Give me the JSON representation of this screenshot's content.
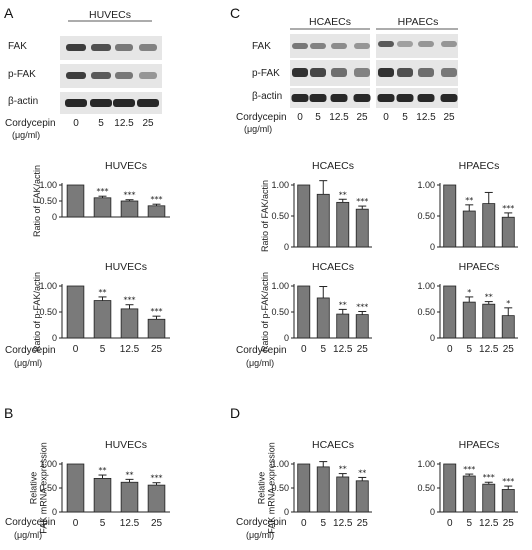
{
  "panels": {
    "A": "A",
    "B": "B",
    "C": "C",
    "D": "D"
  },
  "colors": {
    "bar": "#7a7a7a",
    "axis": "#222222",
    "band": "#1e1e1e",
    "blot_bg": "#e4e4e4"
  },
  "common": {
    "treatment_label": "Cordycepin",
    "treatment_unit": "(μg/ml)",
    "doses": [
      "0",
      "5",
      "12.5",
      "25"
    ]
  },
  "blots": {
    "A": {
      "cell_line": "HUVECs",
      "rows": [
        "FAK",
        "p-FAK",
        "β-actin"
      ]
    },
    "C": {
      "cell_lines": [
        "HCAECs",
        "HPAECs"
      ],
      "rows": [
        "FAK",
        "p-FAK",
        "β-actin"
      ]
    }
  },
  "chart_data": [
    {
      "id": "A1",
      "type": "bar",
      "title": "HUVECs",
      "ylabel": "Ratio of FAK/actin",
      "categories": [
        "0",
        "5",
        "12.5",
        "25"
      ],
      "values": [
        1.0,
        0.6,
        0.5,
        0.35
      ],
      "errors": [
        0,
        0.05,
        0.04,
        0.05
      ],
      "significance": [
        "",
        "***",
        "***",
        "***"
      ],
      "ylim": [
        0,
        1.0
      ],
      "yticks": [
        0,
        0.5,
        1.0
      ],
      "ytick_labels": [
        "0",
        "0.50",
        "1.00"
      ]
    },
    {
      "id": "A2",
      "type": "bar",
      "title": "HUVECs",
      "ylabel": "Ratio of p-FAK/actin",
      "categories": [
        "0",
        "5",
        "12.5",
        "25"
      ],
      "values": [
        1.0,
        0.72,
        0.56,
        0.36
      ],
      "errors": [
        0,
        0.07,
        0.08,
        0.06
      ],
      "significance": [
        "",
        "**",
        "***",
        "***"
      ],
      "ylim": [
        0,
        1.0
      ],
      "yticks": [
        0,
        0.5,
        1.0
      ],
      "ytick_labels": [
        "0",
        "0.50",
        "1.00"
      ]
    },
    {
      "id": "C1",
      "type": "bar",
      "title": "HCAECs",
      "ylabel": "Ratio of FAK/actin",
      "categories": [
        "0",
        "5",
        "12.5",
        "25"
      ],
      "values": [
        1.0,
        0.85,
        0.72,
        0.61
      ],
      "errors": [
        0,
        0.22,
        0.05,
        0.05
      ],
      "significance": [
        "",
        "",
        "**",
        "***"
      ],
      "ylim": [
        0,
        1.0
      ],
      "yticks": [
        0,
        0.5,
        1.0
      ],
      "ytick_labels": [
        "0",
        "0.50",
        "1.00"
      ]
    },
    {
      "id": "C2",
      "type": "bar",
      "title": "HPAECs",
      "ylabel": "",
      "categories": [
        "0",
        "5",
        "12.5",
        "25"
      ],
      "values": [
        1.0,
        0.58,
        0.7,
        0.48
      ],
      "errors": [
        0,
        0.1,
        0.18,
        0.07
      ],
      "significance": [
        "",
        "**",
        "",
        "***"
      ],
      "ylim": [
        0,
        1.0
      ],
      "yticks": [
        0,
        0.5,
        1.0
      ],
      "ytick_labels": [
        "0",
        "0.50",
        "1.00"
      ]
    },
    {
      "id": "C3",
      "type": "bar",
      "title": "HCAECs",
      "ylabel": "Ratio of p-FAK/actin",
      "categories": [
        "0",
        "5",
        "12.5",
        "25"
      ],
      "values": [
        1.0,
        0.77,
        0.46,
        0.45
      ],
      "errors": [
        0,
        0.22,
        0.09,
        0.06
      ],
      "significance": [
        "",
        "",
        "**",
        "***"
      ],
      "ylim": [
        0,
        1.0
      ],
      "yticks": [
        0,
        0.5,
        1.0
      ],
      "ytick_labels": [
        "0",
        "0.50",
        "1.00"
      ]
    },
    {
      "id": "C4",
      "type": "bar",
      "title": "HPAECs",
      "ylabel": "",
      "categories": [
        "0",
        "5",
        "12.5",
        "25"
      ],
      "values": [
        1.0,
        0.69,
        0.65,
        0.43
      ],
      "errors": [
        0,
        0.1,
        0.05,
        0.15
      ],
      "significance": [
        "",
        "*",
        "**",
        "*"
      ],
      "ylim": [
        0,
        1.0
      ],
      "yticks": [
        0,
        0.5,
        1.0
      ],
      "ytick_labels": [
        "0",
        "0.50",
        "1.00"
      ]
    },
    {
      "id": "B1",
      "type": "bar",
      "title": "HUVECs",
      "ylabel": "Relative FAK mRNA expression",
      "categories": [
        "0",
        "5",
        "12.5",
        "25"
      ],
      "values": [
        1.0,
        0.7,
        0.62,
        0.56
      ],
      "errors": [
        0,
        0.07,
        0.06,
        0.05
      ],
      "significance": [
        "",
        "**",
        "**",
        "***"
      ],
      "ylim": [
        0,
        1.0
      ],
      "yticks": [
        0,
        0.5,
        1.0
      ],
      "ytick_labels": [
        "0",
        "0.50",
        "1.00"
      ]
    },
    {
      "id": "D1",
      "type": "bar",
      "title": "HCAECs",
      "ylabel": "Relative FAK mRNA expression",
      "categories": [
        "0",
        "5",
        "12.5",
        "25"
      ],
      "values": [
        1.0,
        0.94,
        0.73,
        0.65
      ],
      "errors": [
        0,
        0.11,
        0.07,
        0.07
      ],
      "significance": [
        "",
        "",
        "**",
        "**"
      ],
      "ylim": [
        0,
        1.0
      ],
      "yticks": [
        0,
        0.5,
        1.0
      ],
      "ytick_labels": [
        "0",
        "0.50",
        "1.00"
      ]
    },
    {
      "id": "D2",
      "type": "bar",
      "title": "HPAECs",
      "ylabel": "",
      "categories": [
        "0",
        "5",
        "12.5",
        "25"
      ],
      "values": [
        1.0,
        0.75,
        0.58,
        0.47
      ],
      "errors": [
        0,
        0.04,
        0.04,
        0.07
      ],
      "significance": [
        "",
        "***",
        "***",
        "***"
      ],
      "ylim": [
        0,
        1.0
      ],
      "yticks": [
        0,
        0.5,
        1.0
      ],
      "ytick_labels": [
        "0",
        "0.50",
        "1.00"
      ]
    }
  ]
}
